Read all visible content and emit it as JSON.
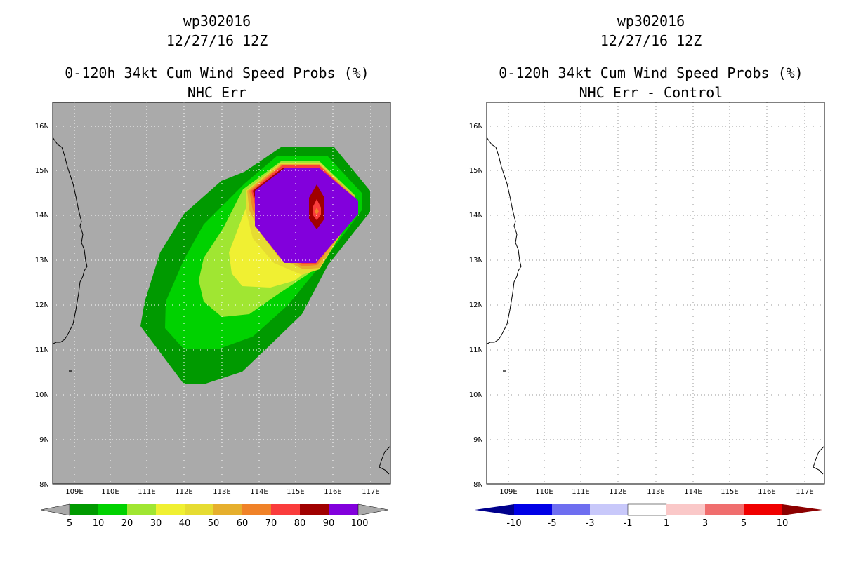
{
  "left": {
    "storm_id": "wp302016",
    "datetime": "12/27/16 12Z",
    "product": "0-120h 34kt Cum Wind Speed Probs (%)",
    "subtitle": "NHC Err",
    "lat_labels": [
      "16N",
      "15N",
      "14N",
      "13N",
      "12N",
      "11N",
      "10N",
      "9N",
      "8N"
    ],
    "lon_labels": [
      "109E",
      "110E",
      "111E",
      "112E",
      "113E",
      "114E",
      "115E",
      "116E",
      "117E"
    ],
    "colorbar": {
      "labels": [
        "5",
        "10",
        "20",
        "30",
        "40",
        "50",
        "60",
        "70",
        "80",
        "90",
        "100"
      ],
      "colors": [
        "#009a00",
        "#00d200",
        "#a0e632",
        "#f0f032",
        "#e6dc32",
        "#e6af2d",
        "#f08228",
        "#fa3c3c",
        "#a00000",
        "#8200dc"
      ],
      "under_color": "#aaaaaa",
      "over_color": "#aaaaaa"
    },
    "background_color": "#aaaaaa"
  },
  "right": {
    "storm_id": "wp302016",
    "datetime": "12/27/16 12Z",
    "product": "0-120h 34kt Cum Wind Speed Probs (%)",
    "subtitle": "NHC Err - Control",
    "lat_labels": [
      "16N",
      "15N",
      "14N",
      "13N",
      "12N",
      "11N",
      "10N",
      "9N",
      "8N"
    ],
    "lon_labels": [
      "109E",
      "110E",
      "111E",
      "112E",
      "113E",
      "114E",
      "115E",
      "116E",
      "117E"
    ],
    "colorbar": {
      "labels": [
        "-10",
        "-5",
        "-3",
        "-1",
        "1",
        "3",
        "5",
        "10"
      ],
      "colors": [
        "#0000e6",
        "#6e6ef0",
        "#c8c8fa",
        "#ffffff",
        "#fac8c8",
        "#f06e6e",
        "#f00000"
      ],
      "under_color": "#00008c",
      "over_color": "#8c0000"
    },
    "background_color": "#ffffff"
  }
}
